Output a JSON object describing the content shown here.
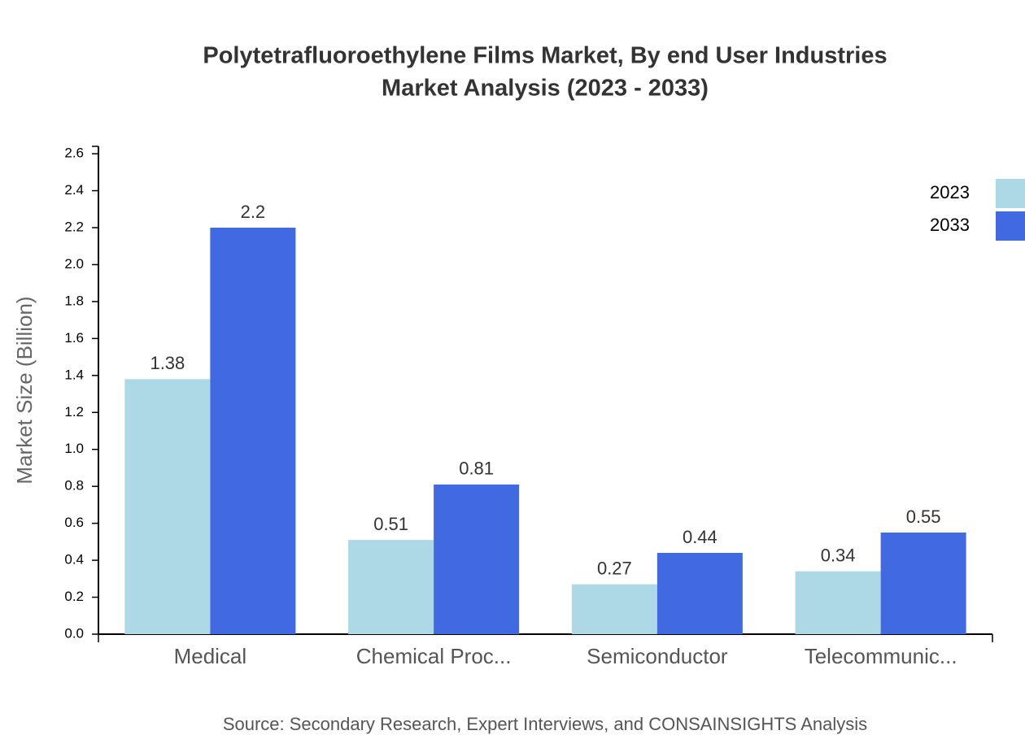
{
  "chart_data": {
    "type": "bar",
    "title": [
      "Polytetrafluoroethylene Films Market, By end User Industries",
      "Market Analysis (2023 - 2033)"
    ],
    "y_label": "Market Size (Billion)",
    "source": "Source: Secondary Research, Expert Interviews, and CONSAINSIGHTS Analysis",
    "categories": [
      "Medical",
      "Chemical Proc...",
      "Semiconductor",
      "Telecommunic..."
    ],
    "series": [
      {
        "name": "2023",
        "color": "#add8e6",
        "values": [
          1.38,
          0.51,
          0.27,
          0.34
        ]
      },
      {
        "name": "2033",
        "color": "#4169e1",
        "values": [
          2.2,
          0.81,
          0.44,
          0.55
        ]
      }
    ],
    "ylim": [
      0,
      2.64
    ],
    "yticks": [
      {
        "value": 0,
        "label": "0.0"
      },
      0.2,
      0.4,
      0.6,
      0.8,
      {
        "value": 1,
        "label": "1.0"
      },
      1.2,
      1.4,
      1.6,
      1.8,
      {
        "value": 2,
        "label": "2.0"
      },
      2.2,
      2.4,
      2.6
    ],
    "legend": "top-right"
  }
}
